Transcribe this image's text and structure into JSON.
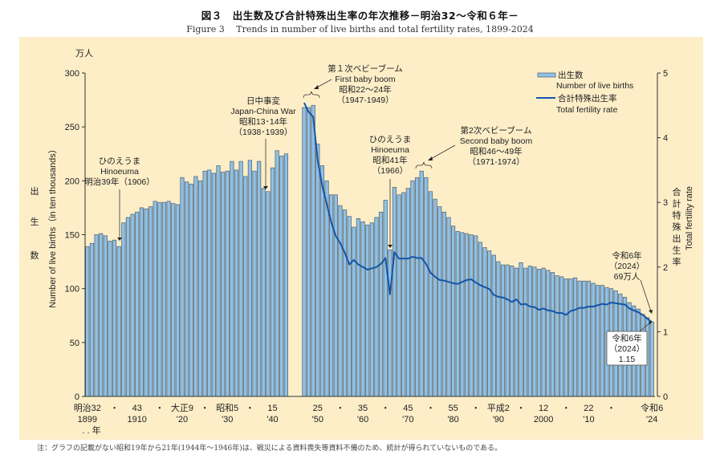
{
  "title_jp": "図３　出生数及び合計特殊出生率の年次推移－明治32～令和６年－",
  "title_en": "Figure 3　 Trends in number of live births and total fertility rates, 1899-2024",
  "note": "注：グラフの記載がない昭和19年から21年(1944年～1946年)は、戦災による資料喪失等資料不備のため、統計が得られていないものである。",
  "colors": {
    "panel": "#fdeec8",
    "bar_fill": "#8fc1e6",
    "bar_stroke": "#5a6a78",
    "line": "#1455a8"
  },
  "chart_data": {
    "type": "bar",
    "title": "出生数及び合計特殊出生率の年次推移",
    "left_axis": {
      "unit_label": "万人",
      "label_jp": "出生数",
      "label_en": "Number of live births（in ten thousands）",
      "ylim": [
        0,
        300
      ],
      "ticks": [
        0,
        50,
        100,
        150,
        200,
        250,
        300
      ]
    },
    "right_axis": {
      "label_jp": "合計特殊出生率",
      "label_en": "Total fertility rate",
      "ylim": [
        0,
        5
      ],
      "ticks": [
        0,
        1,
        2,
        3,
        4,
        5
      ]
    },
    "x_ticks": [
      {
        "year": 1899,
        "era": "明治32",
        "west": "1899"
      },
      {
        "year": 1905,
        "era": "・",
        "west": ""
      },
      {
        "year": 1910,
        "era": "43",
        "west": "1910"
      },
      {
        "year": 1915,
        "era": "・",
        "west": ""
      },
      {
        "year": 1920,
        "era": "大正9",
        "west": "'20"
      },
      {
        "year": 1925,
        "era": "・",
        "west": ""
      },
      {
        "year": 1930,
        "era": "昭和5",
        "west": "'30"
      },
      {
        "year": 1935,
        "era": "・",
        "west": ""
      },
      {
        "year": 1940,
        "era": "15",
        "west": "'40"
      },
      {
        "year": 1950,
        "era": "25",
        "west": "'50"
      },
      {
        "year": 1955,
        "era": "・",
        "west": ""
      },
      {
        "year": 1960,
        "era": "35",
        "west": "'60"
      },
      {
        "year": 1965,
        "era": "・",
        "west": ""
      },
      {
        "year": 1970,
        "era": "45",
        "west": "'70"
      },
      {
        "year": 1975,
        "era": "・",
        "west": ""
      },
      {
        "year": 1980,
        "era": "55",
        "west": "'80"
      },
      {
        "year": 1985,
        "era": "・",
        "west": ""
      },
      {
        "year": 1990,
        "era": "平成2",
        "west": "'90"
      },
      {
        "year": 1995,
        "era": "・",
        "west": ""
      },
      {
        "year": 2000,
        "era": "12",
        "west": "2000"
      },
      {
        "year": 2005,
        "era": "・",
        "west": ""
      },
      {
        "year": 2010,
        "era": "22",
        "west": "'10"
      },
      {
        "year": 2015,
        "era": "・",
        "west": ""
      },
      {
        "year": 2024,
        "era": "令和6",
        "west": "'24"
      }
    ],
    "x_year_suffix": ". . 年",
    "legend": [
      {
        "type": "bar",
        "label_jp": "出生数",
        "label_en": "Number of live births"
      },
      {
        "type": "line",
        "label_jp": "合計特殊出生率",
        "label_en": "Total fertility rate"
      }
    ],
    "legend_position": "top-right",
    "series": [
      {
        "name": "出生数 Number of live births (10,000s)",
        "axis": "left",
        "start_year": 1899,
        "values": [
          139,
          142,
          150,
          151,
          149,
          144,
          145,
          139,
          161,
          166,
          169,
          171,
          175,
          174,
          176,
          181,
          180,
          180,
          181,
          179,
          178,
          203,
          199,
          197,
          204,
          200,
          209,
          210,
          207,
          214,
          208,
          209,
          218,
          210,
          218,
          204,
          219,
          209,
          218,
          193,
          190,
          212,
          228,
          223,
          225,
          null,
          null,
          null,
          268,
          268,
          270,
          234,
          214,
          200,
          187,
          187,
          177,
          173,
          167,
          157,
          165,
          162,
          159,
          161,
          166,
          171,
          182,
          136,
          194,
          187,
          189,
          193,
          200,
          203,
          209,
          203,
          190,
          183,
          176,
          171,
          166,
          158,
          153,
          152,
          151,
          150,
          149,
          143,
          138,
          135,
          131,
          125,
          122,
          122,
          121,
          119,
          124,
          119,
          121,
          120,
          118,
          119,
          117,
          115,
          112,
          111,
          109,
          109,
          110,
          107,
          107,
          107,
          105,
          103,
          103,
          101,
          100,
          98,
          95,
          92,
          87,
          84,
          81,
          76,
          73,
          69
        ]
      },
      {
        "name": "合計特殊出生率 Total fertility rate",
        "axis": "right",
        "start_year": 1947,
        "values": [
          4.54,
          4.4,
          4.32,
          3.65,
          3.26,
          2.98,
          2.69,
          2.48,
          2.37,
          2.22,
          2.04,
          2.11,
          2.04,
          2.0,
          1.96,
          1.98,
          2.0,
          2.05,
          2.14,
          1.58,
          2.23,
          2.13,
          2.13,
          2.13,
          2.16,
          2.14,
          2.14,
          2.05,
          1.91,
          1.85,
          1.8,
          1.79,
          1.77,
          1.75,
          1.74,
          1.77,
          1.8,
          1.81,
          1.76,
          1.72,
          1.69,
          1.66,
          1.57,
          1.54,
          1.53,
          1.5,
          1.46,
          1.5,
          1.42,
          1.43,
          1.39,
          1.38,
          1.34,
          1.36,
          1.33,
          1.32,
          1.29,
          1.29,
          1.26,
          1.32,
          1.34,
          1.37,
          1.37,
          1.39,
          1.39,
          1.41,
          1.43,
          1.42,
          1.45,
          1.44,
          1.43,
          1.42,
          1.36,
          1.33,
          1.3,
          1.26,
          1.2,
          1.15
        ]
      }
    ],
    "gap_years": [
      1944,
      1945,
      1946
    ],
    "annotations": [
      {
        "year": 1906,
        "lines": [
          "ひのえうま",
          "Hinoeuma",
          "明治39年（1906）"
        ]
      },
      {
        "year": 1938.5,
        "lines": [
          "日中事変",
          "Japan-China War",
          "昭和13･14年",
          "（1938･1939）"
        ]
      },
      {
        "year": 1948,
        "lines": [
          "第１次ベビーブーム",
          "First baby boom",
          "昭和22～24年",
          "（1947-1949）"
        ]
      },
      {
        "year": 1966,
        "lines": [
          "ひのえうま",
          "Hinoeuma",
          "昭和41年",
          "（1966）"
        ]
      },
      {
        "year": 1972.5,
        "lines": [
          "第2次ベビーブーム",
          "Second baby boom",
          "昭和46～49年",
          "（1971-1974）"
        ]
      },
      {
        "year": 2024,
        "lines": [
          "令和6年",
          "（2024）",
          "69万人"
        ]
      },
      {
        "year": 2024,
        "boxed": true,
        "lines": [
          "令和6年",
          "（2024）",
          "1.15"
        ]
      }
    ]
  }
}
